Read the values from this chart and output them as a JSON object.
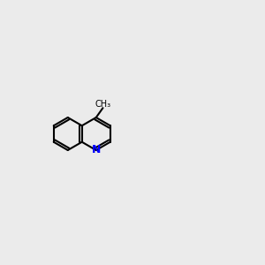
{
  "background_color": "#ebebeb",
  "black": "#000000",
  "blue": "#0000ff",
  "red": "#cc0000",
  "sulfur_color": "#ccaa00",
  "gray": "#555555",
  "lw": 1.5,
  "lw_double": 1.5
}
